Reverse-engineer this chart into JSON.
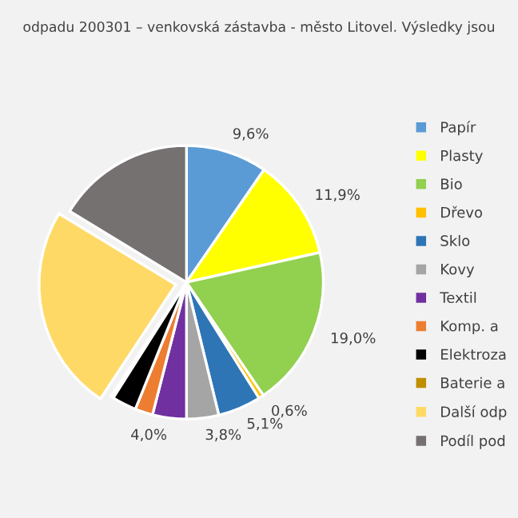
{
  "chart_data": {
    "type": "pie",
    "title": "odpadu 200301 – venkovská zástavba - město Litovel. Výsledky jsou",
    "categories": [
      "Papír",
      "Plasty",
      "Bio",
      "Dřevo",
      "Sklo",
      "Kovy",
      "Textil",
      "Komp. a",
      "Elektroza",
      "Baterie a",
      "Další odp",
      "Podíl pod"
    ],
    "values": [
      9.6,
      11.9,
      19.0,
      0.6,
      5.1,
      3.8,
      4.0,
      2.1,
      2.9,
      0.3,
      24.4,
      16.3
    ],
    "value_labels": [
      "9,6%",
      "11,9%",
      "19,0%",
      "0,6%",
      "5,1%",
      "3,8%",
      "4,0%",
      null,
      null,
      null,
      null,
      null
    ],
    "colors": [
      "#5b9bd5",
      "#ffff00",
      "#92d050",
      "#ffc000",
      "#2e75b6",
      "#a5a5a5",
      "#7030a0",
      "#ed7d31",
      "#000000",
      "#bf8f00",
      "#ffd966",
      "#767171"
    ],
    "legend": "right"
  }
}
